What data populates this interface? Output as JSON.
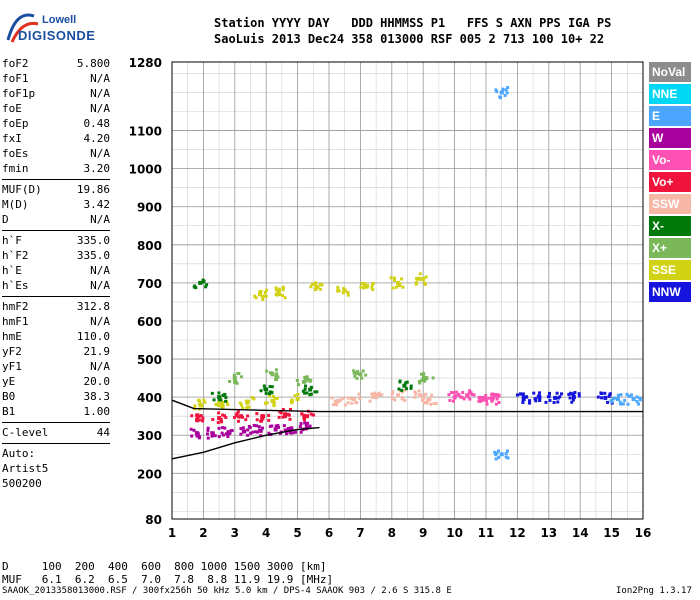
{
  "logo": {
    "line1": "Lowell",
    "line2": "DIGISONDE"
  },
  "header": {
    "row1": "Station YYYY DAY   DDD HHMMSS P1   FFS S AXN PPS IGA PS",
    "row2": "SaoLuis 2013 Dec24 358 013000 RSF 005 2 713 100 10+ 22"
  },
  "params": {
    "group1": [
      [
        "foF2",
        "5.800"
      ],
      [
        "foF1",
        "N/A"
      ],
      [
        "foF1p",
        "N/A"
      ],
      [
        "foE",
        "N/A"
      ],
      [
        "foEp",
        "0.48"
      ],
      [
        "fxI",
        "4.20"
      ],
      [
        "foEs",
        "N/A"
      ],
      [
        "fmin",
        "3.20"
      ]
    ],
    "group2": [
      [
        "MUF(D)",
        "19.86"
      ],
      [
        "M(D)",
        "3.42"
      ],
      [
        "D",
        "N/A"
      ]
    ],
    "group3": [
      [
        "h`F",
        "335.0"
      ],
      [
        "h`F2",
        "335.0"
      ],
      [
        "h`E",
        "N/A"
      ],
      [
        "h`Es",
        "N/A"
      ]
    ],
    "group4": [
      [
        "hmF2",
        "312.8"
      ],
      [
        "hmF1",
        "N/A"
      ],
      [
        "hmE",
        "110.0"
      ],
      [
        "yF2",
        "21.9"
      ],
      [
        "yF1",
        "N/A"
      ],
      [
        "yE",
        "20.0"
      ],
      [
        "B0",
        "38.3"
      ],
      [
        "B1",
        "1.00"
      ]
    ],
    "group5": [
      [
        "C-level",
        "44"
      ]
    ],
    "group6": [
      "Auto:",
      "Artist5",
      "500200"
    ]
  },
  "legend": [
    {
      "label": "NoVal",
      "color": "#8c8c8c"
    },
    {
      "label": "NNE",
      "color": "#00d7f5"
    },
    {
      "label": "E",
      "color": "#4aa6ff"
    },
    {
      "label": "W",
      "color": "#a8009c"
    },
    {
      "label": "Vo-",
      "color": "#ff50b4"
    },
    {
      "label": "Vo+",
      "color": "#f0143c"
    },
    {
      "label": "SSW",
      "color": "#f7b7a7"
    },
    {
      "label": "X-",
      "color": "#00780a"
    },
    {
      "label": "X+",
      "color": "#7ab85a"
    },
    {
      "label": "SSE",
      "color": "#d2d214"
    },
    {
      "label": "NNW",
      "color": "#1414dc"
    }
  ],
  "bottom": {
    "row1": "D     100  200  400  600  800 1000 1500 3000 [km]",
    "row2": "MUF   6.1  6.2  6.5  7.0  7.8  8.8 11.9 19.9 [MHz]"
  },
  "footer": {
    "left": "SAAOK_2013358013000.RSF / 300fx256h 50 kHz 5.0 km / DPS-4 SAAOK 903 / 2.6 S 315.8 E",
    "right": "Ion2Png 1.3.17"
  },
  "chart_data": {
    "type": "scatter",
    "xlim": [
      1,
      16
    ],
    "ylim": [
      80,
      1280
    ],
    "x_ticks": [
      1,
      2,
      3,
      4,
      5,
      6,
      7,
      8,
      9,
      10,
      11,
      12,
      13,
      14,
      15,
      16
    ],
    "y_ticks": [
      80,
      200,
      300,
      400,
      500,
      600,
      700,
      800,
      900,
      1000,
      1100,
      1280
    ],
    "grid": true,
    "series": [
      {
        "color": "#a8009c",
        "points": [
          [
            1.8,
            305
          ],
          [
            2.3,
            305
          ],
          [
            2.8,
            308
          ],
          [
            3.3,
            310
          ],
          [
            3.8,
            312
          ],
          [
            4.3,
            315
          ],
          [
            4.8,
            318
          ],
          [
            5.3,
            320
          ]
        ]
      },
      {
        "color": "#f0143c",
        "points": [
          [
            1.8,
            340
          ],
          [
            2.5,
            345
          ],
          [
            3.2,
            350
          ],
          [
            3.9,
            350
          ],
          [
            4.6,
            355
          ],
          [
            5.3,
            350
          ]
        ]
      },
      {
        "color": "#d2d214",
        "points": [
          [
            1.9,
            380
          ],
          [
            2.6,
            385
          ],
          [
            3.4,
            385
          ],
          [
            4.2,
            390
          ],
          [
            5.0,
            395
          ],
          [
            5.6,
            690
          ],
          [
            6.5,
            680
          ],
          [
            7.2,
            690
          ],
          [
            8.2,
            700
          ],
          [
            9.0,
            710
          ],
          [
            3.8,
            670
          ],
          [
            4.4,
            675
          ]
        ]
      },
      {
        "color": "#f7b7a7",
        "points": [
          [
            6.3,
            390
          ],
          [
            6.8,
            395
          ],
          [
            7.5,
            400
          ],
          [
            8.2,
            405
          ],
          [
            8.9,
            405
          ],
          [
            9.2,
            395
          ]
        ]
      },
      {
        "color": "#ff50b4",
        "points": [
          [
            10.0,
            400
          ],
          [
            10.4,
            405
          ],
          [
            10.8,
            398
          ],
          [
            11.2,
            395
          ],
          [
            11.3,
            405
          ]
        ]
      },
      {
        "color": "#1414dc",
        "points": [
          [
            12.2,
            395
          ],
          [
            12.7,
            400
          ],
          [
            13.2,
            398
          ],
          [
            13.8,
            400
          ],
          [
            14.8,
            398
          ]
        ]
      },
      {
        "color": "#4aa6ff",
        "points": [
          [
            15.2,
            395
          ],
          [
            15.7,
            395
          ],
          [
            11.5,
            1200
          ],
          [
            11.5,
            250
          ]
        ]
      },
      {
        "color": "#00780a",
        "points": [
          [
            2.5,
            400
          ],
          [
            4.0,
            420
          ],
          [
            5.4,
            420
          ],
          [
            8.4,
            430
          ],
          [
            1.9,
            700
          ]
        ]
      },
      {
        "color": "#7ab85a",
        "points": [
          [
            3.0,
            450
          ],
          [
            4.2,
            460
          ],
          [
            5.2,
            440
          ],
          [
            7.0,
            460
          ],
          [
            9.1,
            450
          ]
        ]
      }
    ],
    "curve": {
      "color": "#000000",
      "points": [
        [
          1.0,
          238
        ],
        [
          2.0,
          255
        ],
        [
          3.0,
          280
        ],
        [
          4.0,
          300
        ],
        [
          5.0,
          315
        ],
        [
          5.7,
          320
        ]
      ]
    },
    "baseline": {
      "color": "#000000",
      "points": [
        [
          1.0,
          392
        ],
        [
          1.7,
          370
        ],
        [
          5.7,
          362
        ],
        [
          16,
          362
        ]
      ]
    }
  }
}
